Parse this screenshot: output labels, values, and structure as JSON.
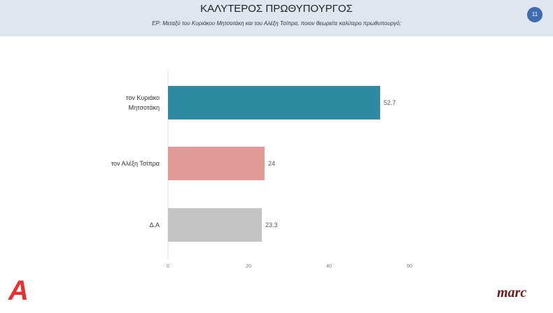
{
  "header": {
    "title": "ΚΑΛΥΤΕΡΟΣ ΠΡΩΘΥΠΟΥΡΓΟΣ",
    "subtitle": "ΕΡ: Μεταξύ του Κυριάκου Μητσοτάκη και του Αλέξη Τσίπρα, ποιον θεωρείτε καλύτερο πρωθυπουργό;",
    "page_number": "11"
  },
  "logos": {
    "left": "A",
    "right": "marc"
  },
  "chart_data": {
    "type": "bar",
    "orientation": "horizontal",
    "categories": [
      [
        "τον Κυριάκο",
        "Μητσοτάκη"
      ],
      [
        "τον Αλέξη Τσίπρα"
      ],
      [
        "Δ.Α"
      ]
    ],
    "values": [
      52.7,
      24,
      23.3
    ],
    "value_labels": [
      "52.7",
      "24",
      "23.3"
    ],
    "colors": [
      "#2e8aa0",
      "#e09a98",
      "#c4c4c4"
    ],
    "xlim": [
      0,
      60
    ],
    "xticks": [
      "0",
      "20",
      "40",
      "60"
    ],
    "grid": false
  }
}
